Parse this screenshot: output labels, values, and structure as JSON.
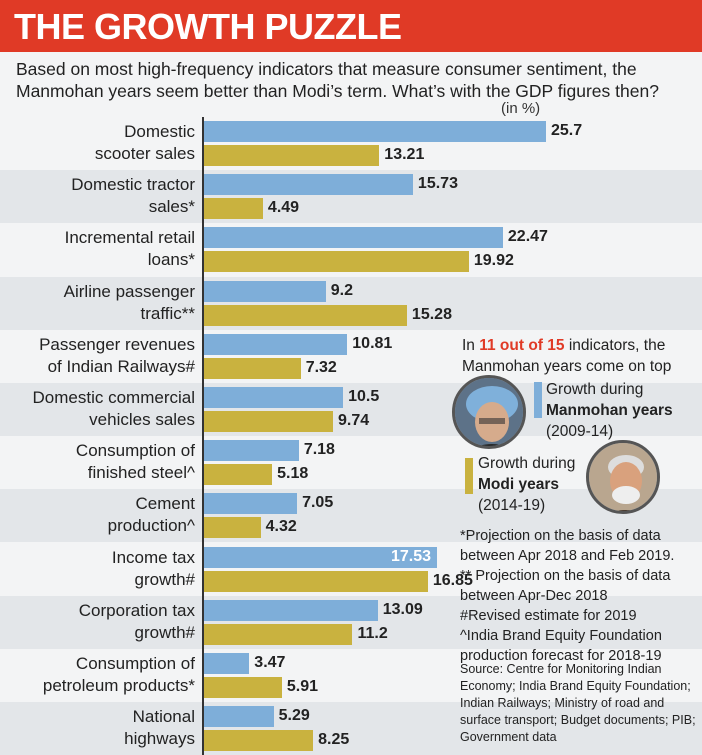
{
  "header": {
    "title": "THE GROWTH PUZZLE"
  },
  "subtitle": "Based on most high-frequency indicators that measure consumer sentiment, the Manmohan years seem better than Modi’s term. What’s with the GDP figures then?",
  "unit": "(in %)",
  "callout": {
    "prefix": "In ",
    "highlight": "11 out of 15",
    "suffix": " indicators, the Manmohan years come on top"
  },
  "legend": {
    "manmohan": {
      "line1": "Growth during",
      "line2": "Manmohan years",
      "line3": "(2009-14)"
    },
    "modi": {
      "line1": "Growth during",
      "line2": "Modi years",
      "line3": "(2014-19)"
    }
  },
  "footnotes": [
    "*Projection on the basis of data between Apr 2018 and Feb 2019.",
    "** Projection on the basis of data between Apr-Dec 2018",
    "#Revised estimate for 2019",
    "^India Brand Equity Foundation production forecast for 2018-19"
  ],
  "source": "Source: Centre for Monitoring Indian Economy; India Brand Equity Foundation; Indian Railways; Ministry of road and surface transport; Budget documents; PIB; Government data",
  "colors": {
    "manmohan": "#7eaed9",
    "modi": "#c9b23f",
    "accent": "#e03a26"
  },
  "chart_data": {
    "type": "bar",
    "orientation": "horizontal",
    "title": "THE GROWTH PUZZLE",
    "xlabel": "(in %)",
    "xlim": [
      0,
      30
    ],
    "categories": [
      "Domestic\nscooter sales",
      "Domestic tractor\nsales*",
      "Incremental retail\nloans*",
      "Airline passenger\ntraffic**",
      "Passenger revenues\nof Indian Railways#",
      "Domestic commercial\nvehicles sales",
      "Consumption of\nfinished steel^",
      "Cement\nproduction^",
      "Income tax\ngrowth#",
      "Corporation tax\ngrowth#",
      "Consumption of\npetroleum products*",
      "National\nhighways"
    ],
    "series": [
      {
        "name": "Growth during Manmohan years (2009-14)",
        "values": [
          25.7,
          15.73,
          22.47,
          9.2,
          10.81,
          10.5,
          7.18,
          7.05,
          17.53,
          13.09,
          3.47,
          5.29
        ]
      },
      {
        "name": "Growth during Modi years (2014-19)",
        "values": [
          13.21,
          4.49,
          19.92,
          15.28,
          7.32,
          9.74,
          5.18,
          4.32,
          16.85,
          11.2,
          5.91,
          8.25
        ]
      }
    ]
  }
}
